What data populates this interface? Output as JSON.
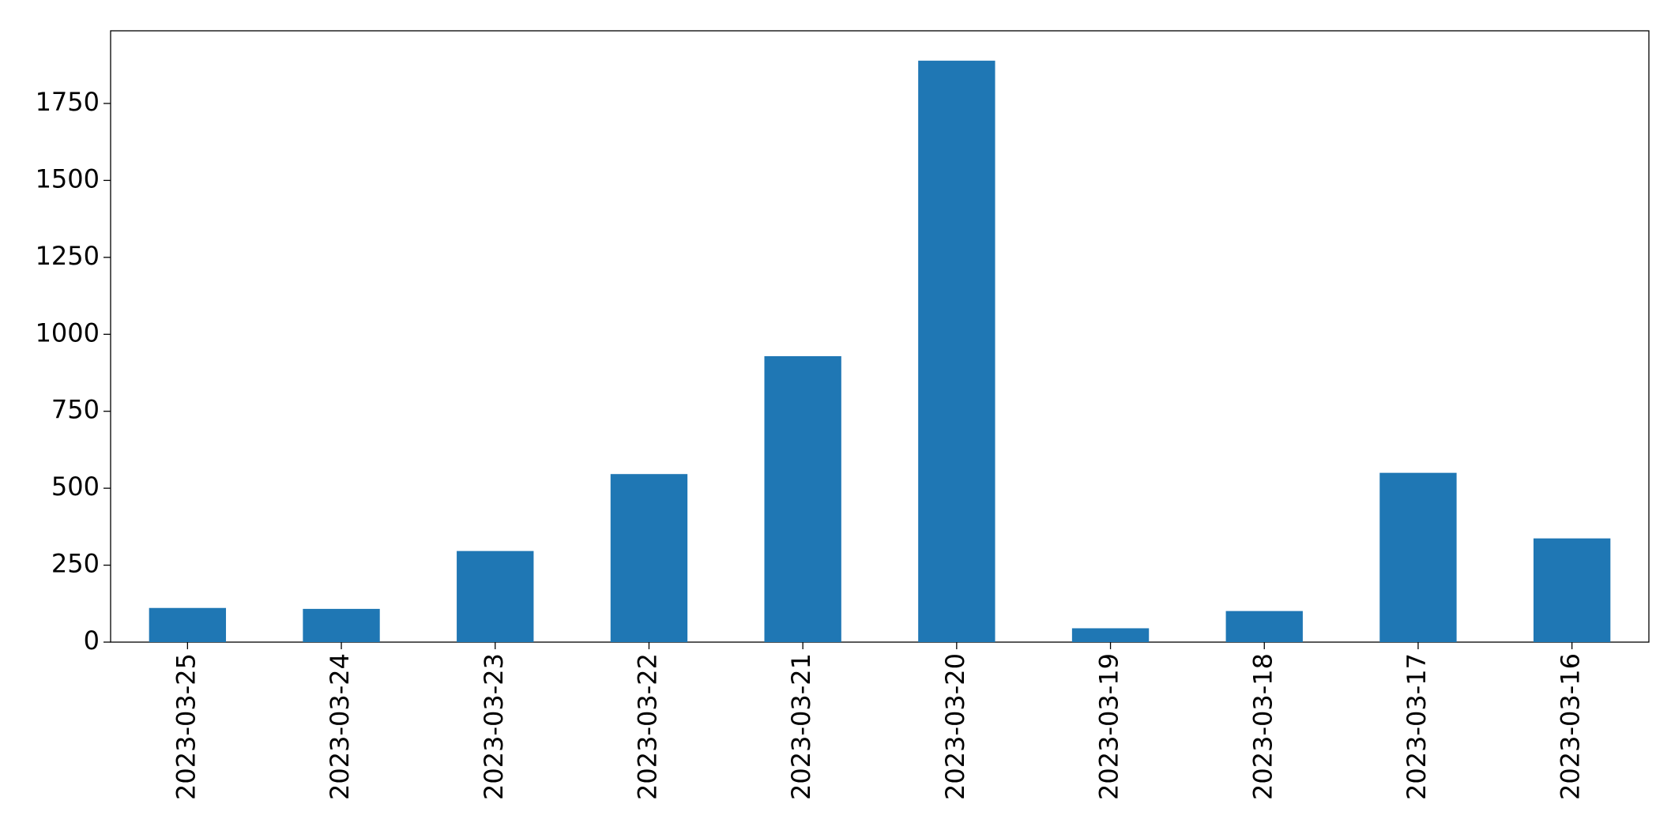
{
  "chart_data": {
    "type": "bar",
    "categories": [
      "2023-03-25",
      "2023-03-24",
      "2023-03-23",
      "2023-03-22",
      "2023-03-21",
      "2023-03-20",
      "2023-03-19",
      "2023-03-18",
      "2023-03-17",
      "2023-03-16"
    ],
    "values": [
      111,
      108,
      296,
      546,
      929,
      1889,
      45,
      101,
      550,
      337
    ],
    "color": "#1f77b4",
    "ylim": [
      0,
      1986
    ],
    "yticks": [
      0,
      250,
      500,
      750,
      1000,
      1250,
      1500,
      1750
    ],
    "grid": false
  }
}
